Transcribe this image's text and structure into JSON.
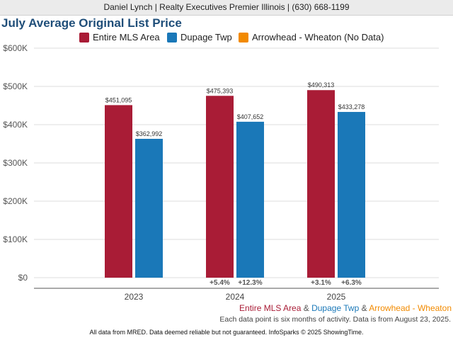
{
  "header": {
    "text": "Daniel Lynch | Realty Executives Premier Illinois | (630) 668-1199"
  },
  "chart_data": {
    "type": "bar",
    "title": "July Average Original List Price",
    "categories": [
      "2023",
      "2024",
      "2025"
    ],
    "series": [
      {
        "name": "Entire MLS Area",
        "color": "#a91c36",
        "values": [
          451095,
          475393,
          490313
        ],
        "labels": [
          "$451,095",
          "$475,393",
          "$490,313"
        ],
        "changes": [
          "",
          "+5.4%",
          "+3.1%"
        ]
      },
      {
        "name": "Dupage Twp",
        "color": "#1a78b8",
        "values": [
          362992,
          407652,
          433278
        ],
        "labels": [
          "$362,992",
          "$407,652",
          "$433,278"
        ],
        "changes": [
          "",
          "+12.3%",
          "+6.3%"
        ]
      },
      {
        "name": "Arrowhead - Wheaton (No Data)",
        "color": "#f28a00",
        "values": [
          null,
          null,
          null
        ],
        "labels": [
          "",
          "",
          ""
        ],
        "changes": [
          "",
          "",
          ""
        ]
      }
    ],
    "ylim": [
      0,
      600000
    ],
    "yticks": [
      0,
      100000,
      200000,
      300000,
      400000,
      500000,
      600000
    ],
    "ytick_labels": [
      "$0",
      "$100K",
      "$200K",
      "$300K",
      "$400K",
      "$500K",
      "$600K"
    ],
    "grid": true,
    "legend_position": "top"
  },
  "footnote": {
    "series_1": "Entire MLS Area",
    "sep_1": " & ",
    "series_2": "Dupage Twp",
    "sep_2": " & ",
    "series_3": "Arrowhead - Wheaton",
    "note": "Each data point is six months of activity. Data is from August 23, 2025."
  },
  "footer": {
    "text": "All data from MRED. Data deemed reliable but not guaranteed. InfoSparks © 2025 ShowingTime."
  }
}
